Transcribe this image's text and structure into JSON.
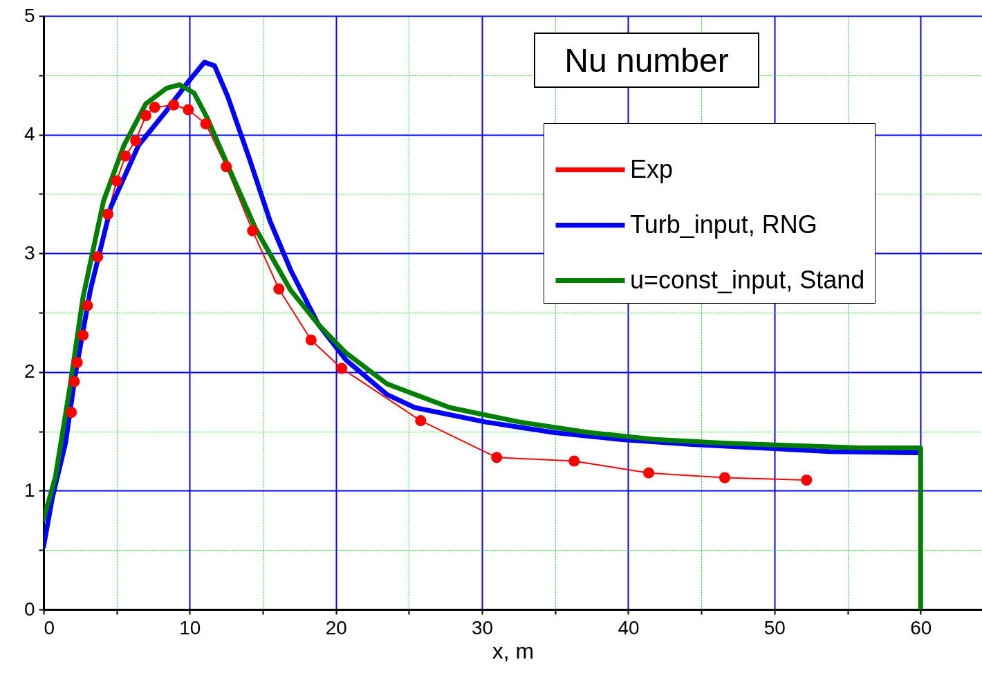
{
  "chart_data": {
    "type": "line",
    "title": "Nu number",
    "xlabel": "x, m",
    "xlim": [
      0,
      64.2
    ],
    "ylim": [
      0,
      5
    ],
    "xticks": [
      0,
      {
        "value": 5,
        "label": null
      },
      10,
      {
        "value": 15,
        "label": null
      },
      20,
      {
        "value": 25,
        "label": null
      },
      30,
      {
        "value": 35,
        "label": null
      },
      40,
      {
        "value": 45,
        "label": null
      },
      50,
      {
        "value": 55,
        "label": null
      },
      60
    ],
    "yticks": [
      0,
      {
        "value": 0.5,
        "label": null
      },
      1,
      {
        "value": 1.5,
        "label": null
      },
      2,
      {
        "value": 2.5,
        "label": null
      },
      3,
      {
        "value": 3.5,
        "label": null
      },
      4,
      {
        "value": 4.5,
        "label": null
      },
      5
    ],
    "grid": true,
    "legend": "top right",
    "line_style": "solid",
    "series": [
      {
        "name": "Exp",
        "color": "#ff0000",
        "marker": "circle",
        "x": [
          1.9,
          2.1,
          2.3,
          2.7,
          3.0,
          3.7,
          4.4,
          5.0,
          5.6,
          6.3,
          7.0,
          7.6,
          8.9,
          9.9,
          11.1,
          12.5,
          14.3,
          16.1,
          18.3,
          20.4,
          25.8,
          31.0,
          36.3,
          41.4,
          46.6,
          52.2
        ],
        "values": [
          1.66,
          1.92,
          2.08,
          2.31,
          2.56,
          2.97,
          3.33,
          3.61,
          3.82,
          3.95,
          4.16,
          4.23,
          4.25,
          4.21,
          4.09,
          3.73,
          3.19,
          2.7,
          2.27,
          2.03,
          1.59,
          1.28,
          1.25,
          1.15,
          1.11,
          1.09
        ]
      },
      {
        "name": "Turb_input, RNG",
        "color": "#0000ff",
        "x": [
          0,
          0.6,
          1.5,
          2.2,
          3.2,
          4.6,
          6.5,
          8.4,
          9.8,
          11.0,
          11.7,
          12.6,
          14.1,
          15.5,
          16.9,
          18.8,
          20.7,
          23.5,
          25.4,
          30.2,
          34.9,
          39.6,
          44.4,
          49.1,
          53.8,
          59.5,
          60
        ],
        "values": [
          0.53,
          0.94,
          1.4,
          2.0,
          2.69,
          3.39,
          3.91,
          4.2,
          4.43,
          4.61,
          4.58,
          4.32,
          3.79,
          3.27,
          2.86,
          2.4,
          2.1,
          1.81,
          1.7,
          1.58,
          1.49,
          1.43,
          1.39,
          1.36,
          1.33,
          1.32,
          1.32
        ]
      },
      {
        "name": "u=const_input, Stand",
        "color": "#007f00",
        "x": [
          0,
          0.8,
          1.8,
          2.7,
          4.1,
          5.5,
          7.0,
          8.4,
          9.3,
          10.3,
          11.2,
          12.6,
          14.5,
          16.9,
          18.8,
          20.7,
          23.5,
          27.8,
          32.5,
          37.3,
          42.0,
          46.7,
          51.5,
          56.2,
          60,
          60
        ],
        "values": [
          0.76,
          1.11,
          1.87,
          2.63,
          3.44,
          3.91,
          4.26,
          4.39,
          4.42,
          4.35,
          4.14,
          3.74,
          3.21,
          2.69,
          2.4,
          2.16,
          1.9,
          1.7,
          1.58,
          1.49,
          1.43,
          1.4,
          1.38,
          1.36,
          1.36,
          0
        ]
      }
    ]
  }
}
